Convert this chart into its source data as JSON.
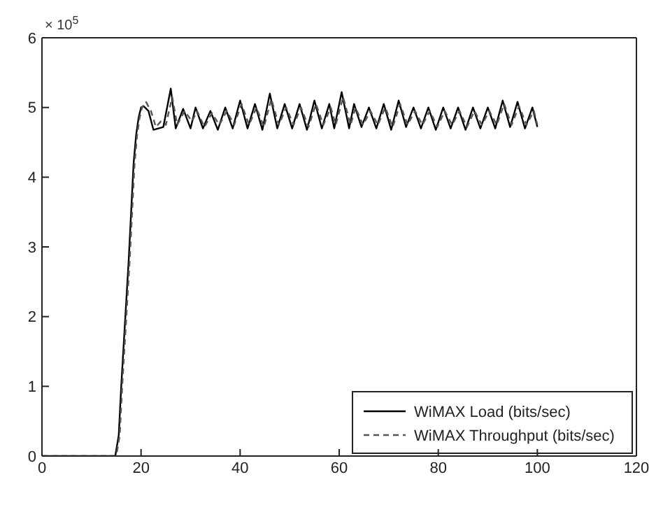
{
  "chart_data": {
    "type": "line",
    "xlim": [
      0,
      120
    ],
    "xticks": [
      0,
      20,
      40,
      60,
      80,
      100,
      120
    ],
    "ylim": [
      0,
      6
    ],
    "yticks": [
      0,
      1,
      2,
      3,
      4,
      5,
      6
    ],
    "legend": "bottom right",
    "marker": "none",
    "annotations": [
      "× 10$^{5}$"
    ],
    "series": [
      {
        "name": "WiMAX Load (bits/sec)",
        "color": "#000000",
        "line_style": "solid",
        "x": [
          0,
          14.8,
          15.5,
          16,
          16.5,
          17,
          17.5,
          18,
          18.5,
          19,
          19.5,
          20,
          20.5,
          21.5,
          22.5,
          23.5,
          24.5,
          26,
          27,
          28.5,
          30,
          31,
          32.5,
          34,
          35.5,
          37,
          38.5,
          40,
          41.5,
          43,
          44.5,
          46,
          47.5,
          49,
          50.5,
          52,
          53.5,
          55,
          56.5,
          58,
          59,
          60.5,
          62,
          63,
          64.5,
          66,
          67.5,
          69,
          70.5,
          72,
          73.5,
          75,
          76.5,
          78,
          79.5,
          81,
          82.5,
          84,
          85.5,
          87,
          88.5,
          90,
          91.5,
          93,
          94.5,
          96,
          97.5,
          99,
          100
        ],
        "values": [
          0,
          0,
          0.3,
          1,
          1.6,
          2.2,
          2.8,
          3.5,
          4.2,
          4.6,
          4.85,
          5.0,
          5.02,
          4.95,
          4.68,
          4.7,
          4.72,
          5.27,
          4.7,
          4.98,
          4.7,
          5.0,
          4.7,
          4.95,
          4.68,
          5.0,
          4.7,
          5.1,
          4.7,
          5.05,
          4.68,
          5.2,
          4.7,
          5.05,
          4.7,
          5.05,
          4.68,
          5.1,
          4.7,
          5.05,
          4.7,
          5.22,
          4.7,
          5.05,
          4.72,
          5.0,
          4.7,
          5.05,
          4.68,
          5.1,
          4.72,
          5.0,
          4.7,
          5.0,
          4.68,
          5.0,
          4.7,
          5.0,
          4.68,
          5.0,
          4.7,
          5.0,
          4.7,
          5.1,
          4.72,
          5.08,
          4.7,
          5.0,
          4.72
        ]
      },
      {
        "name": "WiMAX Throughput (bits/sec)",
        "color": "#555555",
        "line_style": "dashed",
        "x": [
          0,
          15,
          15.7,
          16.2,
          16.7,
          17.2,
          17.7,
          18.2,
          18.7,
          19.2,
          19.7,
          20.2,
          21,
          22,
          23,
          24,
          25,
          26.3,
          27.3,
          28.8,
          30.3,
          31.3,
          32.8,
          34.3,
          35.8,
          37.3,
          38.8,
          40.3,
          41.8,
          43.3,
          44.8,
          46.3,
          47.8,
          49.3,
          50.8,
          52.3,
          53.8,
          55.3,
          56.8,
          58.3,
          59.3,
          60.8,
          62.3,
          63.3,
          64.8,
          66.3,
          67.8,
          69.3,
          70.8,
          72.3,
          73.8,
          75.3,
          76.8,
          78.3,
          79.8,
          81.3,
          82.8,
          84.3,
          85.8,
          87.3,
          88.8,
          90.3,
          91.8,
          93.3,
          94.8,
          96.3,
          97.8,
          99.3,
          100
        ],
        "values": [
          0,
          0,
          0.3,
          1,
          1.6,
          2.2,
          2.8,
          3.5,
          4.2,
          4.6,
          4.85,
          5.0,
          5.08,
          4.95,
          4.72,
          4.8,
          4.75,
          5.15,
          4.75,
          4.95,
          4.8,
          4.95,
          4.72,
          4.92,
          4.75,
          4.95,
          4.75,
          5.05,
          4.75,
          5.0,
          4.72,
          5.12,
          4.75,
          5.0,
          4.75,
          5.0,
          4.72,
          5.05,
          4.75,
          5.0,
          4.75,
          5.15,
          4.75,
          5.0,
          4.75,
          4.95,
          4.75,
          5.0,
          4.72,
          5.05,
          4.75,
          4.95,
          4.75,
          4.95,
          4.72,
          4.95,
          4.75,
          4.95,
          4.72,
          4.95,
          4.75,
          4.95,
          4.75,
          5.05,
          4.75,
          5.02,
          4.75,
          4.95,
          4.75
        ]
      }
    ]
  }
}
